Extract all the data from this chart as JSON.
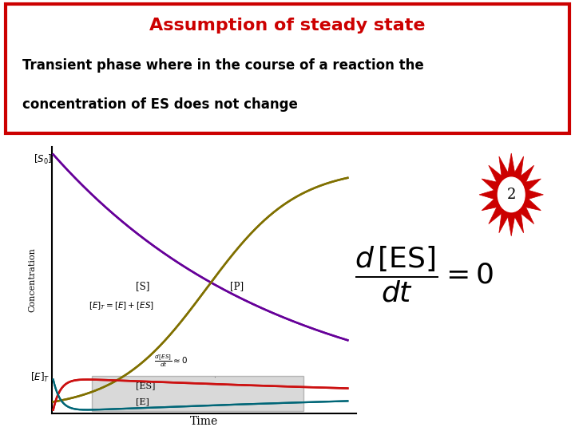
{
  "title": "Assumption of steady state",
  "title_color": "#cc0000",
  "subtitle_line1": "Transient phase where in the course of a reaction the",
  "subtitle_line2": "concentration of ES does not change",
  "box_color": "#cc0000",
  "background_color": "#ffffff",
  "graph_bg": "#ffffff",
  "curve_S_color": "#660099",
  "curve_P_color": "#807000",
  "curve_ES_color": "#cc1111",
  "curve_E_color": "#006677",
  "shaded_region_color": "#bbbbbb",
  "shaded_alpha": 0.55,
  "xlabel": "Time",
  "ylabel": "Concentration",
  "starburst_color": "#cc0000",
  "starburst_inner_color": "#ffffff"
}
